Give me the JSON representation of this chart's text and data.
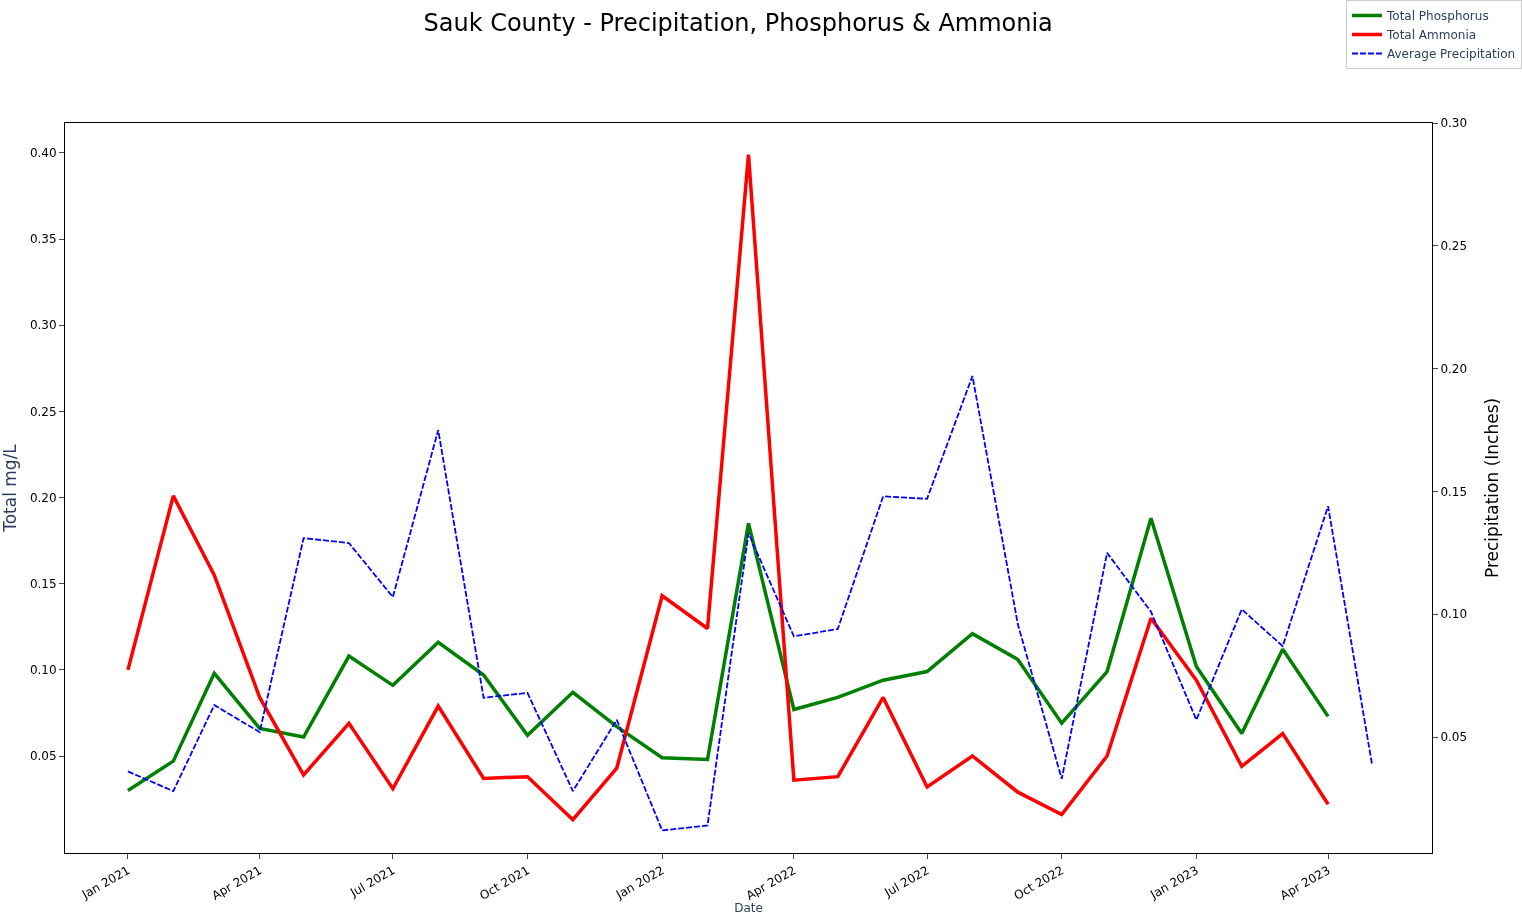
{
  "chart_data": {
    "type": "line",
    "title": "Sauk County - Precipitation, Phosphorus & Ammonia",
    "xlabel": "Date",
    "ylabel": "Total mg/L",
    "y2label": "Precipitation (Inches)",
    "x": [
      "2021-01",
      "2021-02",
      "2021-03",
      "2021-04",
      "2021-05",
      "2021-06",
      "2021-07",
      "2021-08",
      "2021-09",
      "2021-10",
      "2021-11",
      "2021-12",
      "2022-01",
      "2022-02",
      "2022-03",
      "2022-04",
      "2022-05",
      "2022-06",
      "2022-07",
      "2022-08",
      "2022-09",
      "2022-10",
      "2022-11",
      "2022-12",
      "2023-01",
      "2023-02",
      "2023-03",
      "2023-04"
    ],
    "series": [
      {
        "name": "Total Phosphorus",
        "color": "#008000",
        "line_style": "solid",
        "values": [
          0.03,
          0.047,
          0.098,
          0.066,
          0.061,
          0.108,
          0.091,
          0.116,
          0.097,
          0.062,
          0.087,
          0.067,
          0.049,
          0.048,
          0.185,
          0.077,
          0.084,
          0.094,
          0.099,
          0.121,
          0.106,
          0.069,
          0.099,
          0.188,
          0.102,
          0.063,
          0.112,
          0.073
        ]
      },
      {
        "name": "Total Ammonia",
        "color": "#ff0000",
        "line_style": "solid",
        "values": [
          0.1,
          0.201,
          0.155,
          0.084,
          0.039,
          0.069,
          0.031,
          0.079,
          0.037,
          0.038,
          0.013,
          0.043,
          0.143,
          0.124,
          0.399,
          0.036,
          0.038,
          0.084,
          0.032,
          0.05,
          0.029,
          0.016,
          0.05,
          0.13,
          0.094,
          0.044,
          0.063,
          0.022
        ]
      },
      {
        "name": "Average Precipitation",
        "color": "#0000ff",
        "line_style": "dashed",
        "axis": "y2",
        "x": [
          "2021-01",
          "2021-02",
          "2021-03",
          "2021-04",
          "2021-05",
          "2021-06",
          "2021-07",
          "2021-08",
          "2021-09",
          "2021-10",
          "2021-11",
          "2021-12",
          "2022-01",
          "2022-02",
          "2022-03",
          "2022-04",
          "2022-05",
          "2022-06",
          "2022-07",
          "2022-08",
          "2022-09",
          "2022-10",
          "2022-11",
          "2022-12",
          "2023-01",
          "2023-02",
          "2023-03",
          "2023-04",
          "2023-05"
        ],
        "values": [
          0.036,
          0.028,
          0.063,
          0.052,
          0.131,
          0.129,
          0.107,
          0.175,
          0.066,
          0.068,
          0.028,
          0.057,
          0.012,
          0.014,
          0.133,
          0.091,
          0.094,
          0.148,
          0.147,
          0.197,
          0.096,
          0.033,
          0.125,
          0.101,
          0.057,
          0.102,
          0.087,
          0.144,
          0.039
        ]
      }
    ],
    "xlim": [
      "2020-11-19",
      "2023-06-11"
    ],
    "xticks": [
      {
        "value": "2021-01-01",
        "label": "Jan 2021"
      },
      {
        "value": "2021-04-01",
        "label": "Apr 2021"
      },
      {
        "value": "2021-07-01",
        "label": "Jul 2021"
      },
      {
        "value": "2021-10-01",
        "label": "Oct 2021"
      },
      {
        "value": "2022-01-01",
        "label": "Jan 2022"
      },
      {
        "value": "2022-04-01",
        "label": "Apr 2022"
      },
      {
        "value": "2022-07-01",
        "label": "Jul 2022"
      },
      {
        "value": "2022-10-01",
        "label": "Oct 2022"
      },
      {
        "value": "2023-01-01",
        "label": "Jan 2023"
      },
      {
        "value": "2023-04-01",
        "label": "Apr 2023"
      }
    ],
    "ylim": [
      -0.0063,
      0.4174
    ],
    "yticks": [
      0.05,
      {
        "value": 0.1,
        "label": "0.10"
      },
      0.15,
      {
        "value": 0.2,
        "label": "0.20"
      },
      0.25,
      {
        "value": 0.3,
        "label": "0.30"
      },
      0.35,
      {
        "value": 0.4,
        "label": "0.40"
      }
    ],
    "y2lim": [
      0.0028,
      0.3
    ],
    "y2ticks": [
      0.05,
      {
        "value": 0.1,
        "label": "0.10"
      },
      0.15,
      {
        "value": 0.2,
        "label": "0.20"
      },
      0.25,
      {
        "value": 0.3,
        "label": "0.30"
      }
    ],
    "legend": "top right",
    "marker": "none"
  }
}
